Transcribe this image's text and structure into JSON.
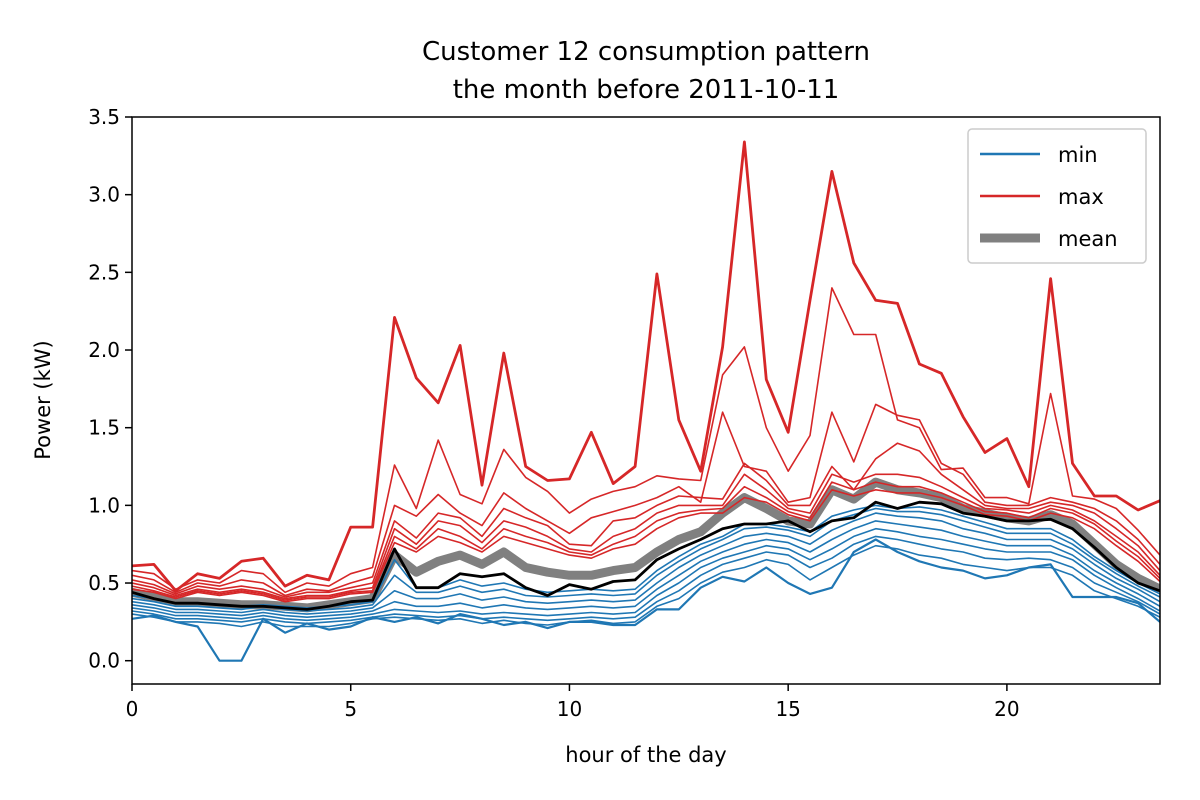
{
  "chart_data": {
    "type": "line",
    "title_line1": "Customer 12 consumption pattern",
    "title_line2": "the month before 2011-10-11",
    "xlabel": "hour of the day",
    "ylabel": "Power (kW)",
    "xlim": [
      0,
      23.5
    ],
    "ylim": [
      -0.15,
      3.5
    ],
    "xticks": [
      0,
      5,
      10,
      15,
      20
    ],
    "yticks": [
      0.0,
      0.5,
      1.0,
      1.5,
      2.0,
      2.5,
      3.0,
      3.5
    ],
    "ytick_labels": [
      "0.0",
      "0.5",
      "1.0",
      "1.5",
      "2.0",
      "2.5",
      "3.0",
      "3.5"
    ],
    "grid": false,
    "legend_position": "top-right",
    "legend": [
      {
        "label": "min",
        "color": "#1f77b4",
        "style": "line"
      },
      {
        "label": "max",
        "color": "#d62728",
        "style": "line"
      },
      {
        "label": "mean",
        "color": "#808080",
        "style": "thick"
      }
    ],
    "colors": {
      "min": "#1f77b4",
      "max": "#d62728",
      "mean": "#808080",
      "median": "#000000"
    },
    "x": [
      0,
      0.5,
      1,
      1.5,
      2,
      2.5,
      3,
      3.5,
      4,
      4.5,
      5,
      5.5,
      6,
      6.5,
      7,
      7.5,
      8,
      8.5,
      9,
      9.5,
      10,
      10.5,
      11,
      11.5,
      12,
      12.5,
      13,
      13.5,
      14,
      14.5,
      15,
      15.5,
      16,
      16.5,
      17,
      17.5,
      18,
      18.5,
      19,
      19.5,
      20,
      20.5,
      21,
      21.5,
      22,
      22.5,
      23,
      23.5
    ],
    "series": [
      {
        "group": "max",
        "values": [
          0.61,
          0.62,
          0.45,
          0.56,
          0.53,
          0.64,
          0.66,
          0.48,
          0.55,
          0.52,
          0.86,
          0.86,
          2.21,
          1.82,
          1.66,
          2.03,
          1.13,
          1.98,
          1.25,
          1.16,
          1.17,
          1.47,
          1.14,
          1.25,
          2.49,
          1.55,
          1.22,
          2.02,
          3.34,
          1.81,
          1.47,
          2.32,
          3.15,
          2.56,
          2.32,
          2.3,
          1.91,
          1.85,
          1.57,
          1.34,
          1.43,
          1.12,
          2.46,
          1.27,
          1.06,
          1.06,
          0.97,
          1.03
        ]
      },
      {
        "group": "max",
        "values": [
          0.58,
          0.56,
          0.46,
          0.52,
          0.5,
          0.58,
          0.56,
          0.44,
          0.5,
          0.48,
          0.56,
          0.6,
          1.26,
          0.98,
          1.42,
          1.07,
          1.01,
          1.36,
          1.18,
          1.09,
          0.95,
          1.04,
          1.09,
          1.12,
          1.19,
          1.17,
          1.16,
          1.84,
          2.02,
          1.5,
          1.22,
          1.45,
          2.4,
          2.1,
          2.1,
          1.55,
          1.5,
          1.23,
          1.24,
          1.05,
          1.05,
          1.01,
          1.72,
          1.06,
          1.04,
          0.98,
          0.84,
          0.68
        ]
      },
      {
        "group": "max",
        "values": [
          0.55,
          0.52,
          0.44,
          0.5,
          0.48,
          0.52,
          0.5,
          0.42,
          0.46,
          0.45,
          0.5,
          0.54,
          1.0,
          0.93,
          1.07,
          0.95,
          0.87,
          1.08,
          0.98,
          0.9,
          0.82,
          0.92,
          0.96,
          1.0,
          1.05,
          1.12,
          1.02,
          1.6,
          1.25,
          1.22,
          1.02,
          1.05,
          1.6,
          1.28,
          1.65,
          1.58,
          1.55,
          1.27,
          1.2,
          1.02,
          1.0,
          1.0,
          1.05,
          1.02,
          0.98,
          0.9,
          0.78,
          0.62
        ]
      },
      {
        "group": "max",
        "values": [
          0.52,
          0.49,
          0.43,
          0.48,
          0.46,
          0.48,
          0.46,
          0.41,
          0.44,
          0.44,
          0.47,
          0.5,
          0.9,
          0.79,
          0.95,
          0.92,
          0.8,
          0.98,
          0.92,
          0.87,
          0.75,
          0.74,
          0.9,
          0.92,
          1.0,
          1.06,
          1.05,
          1.04,
          1.27,
          1.16,
          1.0,
          1.0,
          1.25,
          1.1,
          1.3,
          1.4,
          1.35,
          1.2,
          1.1,
          1.0,
          0.98,
          0.98,
          1.02,
          1.0,
          0.95,
          0.85,
          0.74,
          0.58
        ]
      },
      {
        "group": "max",
        "values": [
          0.5,
          0.47,
          0.42,
          0.46,
          0.44,
          0.46,
          0.44,
          0.4,
          0.42,
          0.42,
          0.45,
          0.47,
          0.85,
          0.75,
          0.9,
          0.87,
          0.76,
          0.9,
          0.86,
          0.8,
          0.72,
          0.7,
          0.8,
          0.85,
          0.95,
          1.0,
          1.0,
          1.0,
          1.2,
          1.1,
          0.98,
          0.95,
          1.2,
          1.15,
          1.2,
          1.2,
          1.18,
          1.12,
          1.05,
          0.98,
          0.97,
          0.95,
          1.0,
          0.97,
          0.9,
          0.8,
          0.7,
          0.55
        ]
      },
      {
        "group": "max",
        "values": [
          0.48,
          0.45,
          0.41,
          0.45,
          0.43,
          0.45,
          0.43,
          0.39,
          0.41,
          0.41,
          0.44,
          0.45,
          0.8,
          0.72,
          0.85,
          0.8,
          0.72,
          0.85,
          0.8,
          0.76,
          0.7,
          0.68,
          0.75,
          0.8,
          0.9,
          0.95,
          0.97,
          0.98,
          1.12,
          1.05,
          0.96,
          0.92,
          1.15,
          1.1,
          1.15,
          1.12,
          1.12,
          1.08,
          1.02,
          0.96,
          0.95,
          0.92,
          0.98,
          0.95,
          0.88,
          0.77,
          0.67,
          0.53
        ]
      },
      {
        "group": "max",
        "values": [
          0.46,
          0.44,
          0.4,
          0.44,
          0.42,
          0.44,
          0.42,
          0.38,
          0.4,
          0.4,
          0.43,
          0.44,
          0.76,
          0.7,
          0.8,
          0.76,
          0.7,
          0.8,
          0.76,
          0.72,
          0.68,
          0.66,
          0.72,
          0.75,
          0.85,
          0.92,
          0.95,
          0.95,
          1.05,
          1.02,
          0.94,
          0.9,
          1.1,
          1.06,
          1.1,
          1.08,
          1.08,
          1.05,
          1.0,
          0.94,
          0.93,
          0.9,
          0.95,
          0.92,
          0.85,
          0.74,
          0.64,
          0.51
        ]
      },
      {
        "group": "min",
        "values": [
          0.27,
          0.29,
          0.25,
          0.22,
          0.0,
          0.0,
          0.27,
          0.18,
          0.24,
          0.2,
          0.22,
          0.28,
          0.25,
          0.28,
          0.24,
          0.3,
          0.27,
          0.23,
          0.25,
          0.21,
          0.25,
          0.25,
          0.23,
          0.23,
          0.33,
          0.33,
          0.47,
          0.54,
          0.51,
          0.6,
          0.5,
          0.43,
          0.47,
          0.7,
          0.78,
          0.7,
          0.64,
          0.6,
          0.58,
          0.53,
          0.55,
          0.6,
          0.62,
          0.41,
          0.41,
          0.41,
          0.37,
          0.25
        ]
      },
      {
        "group": "min",
        "values": [
          0.3,
          0.28,
          0.25,
          0.25,
          0.24,
          0.22,
          0.25,
          0.22,
          0.22,
          0.22,
          0.24,
          0.27,
          0.28,
          0.27,
          0.26,
          0.27,
          0.24,
          0.26,
          0.24,
          0.23,
          0.25,
          0.26,
          0.24,
          0.25,
          0.35,
          0.4,
          0.5,
          0.57,
          0.6,
          0.65,
          0.62,
          0.52,
          0.6,
          0.68,
          0.74,
          0.72,
          0.68,
          0.66,
          0.62,
          0.6,
          0.58,
          0.6,
          0.6,
          0.55,
          0.45,
          0.4,
          0.35,
          0.28
        ]
      },
      {
        "group": "min",
        "values": [
          0.32,
          0.3,
          0.27,
          0.27,
          0.26,
          0.25,
          0.27,
          0.25,
          0.24,
          0.25,
          0.26,
          0.28,
          0.3,
          0.29,
          0.28,
          0.29,
          0.27,
          0.28,
          0.27,
          0.26,
          0.27,
          0.28,
          0.27,
          0.28,
          0.38,
          0.45,
          0.55,
          0.62,
          0.66,
          0.7,
          0.68,
          0.6,
          0.66,
          0.75,
          0.8,
          0.78,
          0.75,
          0.72,
          0.7,
          0.66,
          0.65,
          0.66,
          0.65,
          0.6,
          0.5,
          0.44,
          0.38,
          0.3
        ]
      },
      {
        "group": "min",
        "values": [
          0.34,
          0.32,
          0.29,
          0.29,
          0.28,
          0.27,
          0.29,
          0.27,
          0.26,
          0.27,
          0.28,
          0.3,
          0.33,
          0.32,
          0.31,
          0.32,
          0.3,
          0.31,
          0.3,
          0.29,
          0.3,
          0.31,
          0.3,
          0.31,
          0.42,
          0.5,
          0.6,
          0.66,
          0.7,
          0.74,
          0.72,
          0.65,
          0.72,
          0.8,
          0.85,
          0.83,
          0.8,
          0.78,
          0.75,
          0.72,
          0.7,
          0.7,
          0.7,
          0.65,
          0.55,
          0.47,
          0.4,
          0.32
        ]
      },
      {
        "group": "min",
        "values": [
          0.36,
          0.34,
          0.31,
          0.31,
          0.3,
          0.29,
          0.31,
          0.29,
          0.28,
          0.29,
          0.3,
          0.32,
          0.38,
          0.35,
          0.35,
          0.37,
          0.34,
          0.36,
          0.34,
          0.33,
          0.34,
          0.35,
          0.34,
          0.35,
          0.46,
          0.55,
          0.64,
          0.7,
          0.75,
          0.78,
          0.76,
          0.7,
          0.78,
          0.85,
          0.9,
          0.88,
          0.86,
          0.84,
          0.8,
          0.77,
          0.74,
          0.74,
          0.74,
          0.68,
          0.58,
          0.5,
          0.43,
          0.35
        ]
      },
      {
        "group": "min",
        "values": [
          0.38,
          0.36,
          0.33,
          0.33,
          0.32,
          0.31,
          0.33,
          0.31,
          0.3,
          0.31,
          0.32,
          0.34,
          0.45,
          0.4,
          0.4,
          0.43,
          0.39,
          0.41,
          0.38,
          0.37,
          0.38,
          0.39,
          0.38,
          0.39,
          0.5,
          0.6,
          0.68,
          0.74,
          0.8,
          0.82,
          0.8,
          0.75,
          0.84,
          0.9,
          0.95,
          0.93,
          0.92,
          0.9,
          0.85,
          0.82,
          0.78,
          0.78,
          0.78,
          0.72,
          0.62,
          0.53,
          0.46,
          0.38
        ]
      },
      {
        "group": "min",
        "values": [
          0.4,
          0.38,
          0.35,
          0.35,
          0.34,
          0.33,
          0.35,
          0.33,
          0.32,
          0.33,
          0.34,
          0.36,
          0.55,
          0.44,
          0.44,
          0.48,
          0.44,
          0.46,
          0.42,
          0.41,
          0.42,
          0.43,
          0.42,
          0.43,
          0.55,
          0.64,
          0.72,
          0.78,
          0.85,
          0.86,
          0.84,
          0.8,
          0.9,
          0.94,
          0.98,
          0.96,
          0.96,
          0.94,
          0.9,
          0.86,
          0.82,
          0.82,
          0.82,
          0.75,
          0.65,
          0.56,
          0.48,
          0.41
        ]
      },
      {
        "group": "min",
        "values": [
          0.42,
          0.4,
          0.37,
          0.37,
          0.36,
          0.35,
          0.36,
          0.35,
          0.34,
          0.35,
          0.36,
          0.38,
          0.65,
          0.47,
          0.47,
          0.52,
          0.48,
          0.5,
          0.46,
          0.44,
          0.45,
          0.46,
          0.45,
          0.46,
          0.58,
          0.67,
          0.75,
          0.8,
          0.88,
          0.88,
          0.86,
          0.83,
          0.93,
          0.97,
          1.0,
          0.98,
          0.99,
          0.97,
          0.93,
          0.89,
          0.85,
          0.85,
          0.85,
          0.78,
          0.67,
          0.58,
          0.5,
          0.43
        ]
      },
      {
        "group": "mean",
        "values": [
          0.44,
          0.41,
          0.38,
          0.38,
          0.37,
          0.36,
          0.36,
          0.35,
          0.34,
          0.36,
          0.38,
          0.4,
          0.68,
          0.57,
          0.64,
          0.68,
          0.62,
          0.7,
          0.6,
          0.57,
          0.55,
          0.55,
          0.58,
          0.6,
          0.7,
          0.78,
          0.83,
          0.95,
          1.05,
          0.98,
          0.9,
          0.88,
          1.1,
          1.04,
          1.15,
          1.1,
          1.08,
          1.05,
          0.98,
          0.95,
          0.92,
          0.9,
          0.94,
          0.88,
          0.75,
          0.62,
          0.53,
          0.46
        ]
      },
      {
        "group": "median",
        "values": [
          0.44,
          0.4,
          0.37,
          0.37,
          0.36,
          0.35,
          0.35,
          0.34,
          0.33,
          0.35,
          0.38,
          0.39,
          0.72,
          0.47,
          0.47,
          0.56,
          0.54,
          0.56,
          0.47,
          0.42,
          0.49,
          0.46,
          0.51,
          0.52,
          0.65,
          0.72,
          0.78,
          0.85,
          0.88,
          0.88,
          0.9,
          0.83,
          0.9,
          0.92,
          1.02,
          0.98,
          1.02,
          1.01,
          0.95,
          0.93,
          0.9,
          0.9,
          0.91,
          0.85,
          0.73,
          0.6,
          0.5,
          0.45
        ]
      }
    ]
  }
}
